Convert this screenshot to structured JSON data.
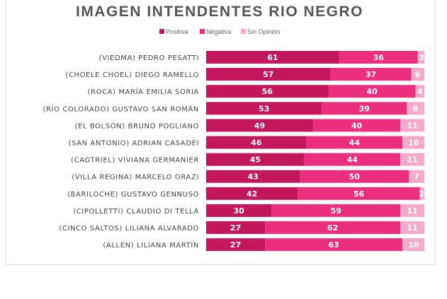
{
  "chart_data": {
    "type": "bar",
    "orientation": "horizontal",
    "stacked": true,
    "title": "IMAGEN INTENDENTES RIO NEGRO",
    "legend_position": "top",
    "xlim": [
      0,
      100
    ],
    "categories": [
      "(VIEDMA) PEDRO PESATTI",
      "(CHOELE CHOEL) DIEGO RAMELLO",
      "(ROCA) MARÍA EMILIA SORIA",
      "(RÍO COLORADO) GUSTAVO SAN ROMÁN",
      "(EL BOLSÓN) BRUNO POGLIANO",
      "(SAN ANTONIO) ADRIAN CASADEI",
      "(CAGTRIEL) VIVIANA GERMANIER",
      "(VILLA REGINA) MARCELO ORAZI",
      "(BARILOCHE) GUSTAVO GENNUSO",
      "(CIPOLLETTI) CLAUDIO DI TELLA",
      "(CINCO SALTOS) LILIANA ALVARADO",
      "(ALLEN) LILIANA MARTÍN"
    ],
    "series": [
      {
        "name": "Positiva",
        "color": "#c2185b",
        "values": [
          61,
          57,
          56,
          53,
          49,
          46,
          45,
          43,
          42,
          30,
          27,
          27
        ]
      },
      {
        "name": "Negativa",
        "color": "#ec2f7c",
        "values": [
          36,
          37,
          40,
          39,
          40,
          44,
          44,
          50,
          56,
          59,
          62,
          63
        ]
      },
      {
        "name": "Sin Opinión",
        "color": "#f6a9c8",
        "values": [
          3,
          6,
          4,
          8,
          11,
          10,
          11,
          7,
          2,
          11,
          11,
          10
        ]
      }
    ]
  }
}
